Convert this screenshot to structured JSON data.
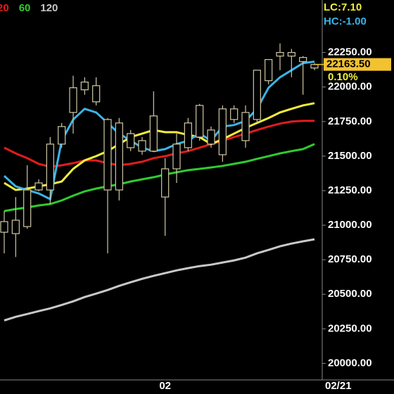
{
  "chart_data": {
    "type": "candlestick",
    "categories": [
      null,
      null,
      null,
      null,
      null,
      null,
      null,
      null,
      null,
      null,
      null,
      null,
      null,
      null,
      "02",
      null,
      null,
      null,
      null,
      null,
      null,
      null,
      null,
      null,
      null,
      null,
      null,
      null
    ],
    "last_date": "02/21",
    "open": [
      20949,
      20939,
      20990,
      21255,
      21255,
      21587,
      21816,
      21980,
      21893,
      21765,
      21255,
      21561,
      21536,
      21536,
      21408,
      21408,
      21561,
      21638,
      21587,
      21510,
      21765,
      21612,
      21765,
      22046,
      22224,
      22224,
      22184,
      22138
    ],
    "high": [
      21102,
      21204,
      21434,
      21332,
      21638,
      21740,
      22082,
      22071,
      22071,
      21776,
      21776,
      21689,
      21638,
      21969,
      21485,
      21663,
      21776,
      21878,
      21714,
      21867,
      21867,
      21867,
      22122,
      22199,
      22316,
      22276,
      22224,
      22173
    ],
    "low": [
      20796,
      20770,
      20974,
      21245,
      21153,
      21561,
      21663,
      21944,
      21867,
      20796,
      21179,
      21536,
      21510,
      21536,
      20923,
      21306,
      21536,
      21612,
      21561,
      21459,
      21740,
      21561,
      21740,
      22020,
      22122,
      22071,
      21944,
      22122
    ],
    "close": [
      21026,
      21036,
      21255,
      21306,
      21587,
      21714,
      21995,
      22036,
      22010,
      21255,
      21740,
      21663,
      21612,
      21791,
      21204,
      21587,
      21740,
      21867,
      21689,
      21842,
      21842,
      21816,
      22122,
      22199,
      22250,
      22250,
      22214,
      22163
    ],
    "candle_color": "#cfc7a3",
    "series": [
      {
        "color": "#3ab4e6",
        "values": [
          21357,
          21281,
          21255,
          21230,
          21189,
          21612,
          21765,
          21842,
          21816,
          21740,
          21663,
          21612,
          21561,
          21536,
          21551,
          21587,
          21612,
          21663,
          21612,
          21714,
          21725,
          21755,
          21842,
          21995,
          22071,
          22122,
          22173,
          22184
        ]
      },
      {
        "color": "#f2ee3a",
        "values": [
          21306,
          21255,
          21265,
          21281,
          21296,
          21316,
          21408,
          21469,
          21500,
          21536,
          21587,
          21638,
          21663,
          21689,
          21673,
          21673,
          21653,
          21638,
          21587,
          21622,
          21663,
          21704,
          21740,
          21776,
          21816,
          21842,
          21867,
          21883
        ]
      },
      {
        "name": "20",
        "color": "#e01c1c",
        "values": [
          21561,
          21520,
          21485,
          21444,
          21423,
          21434,
          21449,
          21469,
          21469,
          21449,
          21434,
          21444,
          21459,
          21485,
          21500,
          21520,
          21536,
          21561,
          21587,
          21612,
          21638,
          21663,
          21689,
          21714,
          21735,
          21750,
          21755,
          21755
        ]
      },
      {
        "name": "60",
        "color": "#2ecc2e",
        "values": [
          21102,
          21117,
          21128,
          21143,
          21153,
          21179,
          21214,
          21245,
          21265,
          21281,
          21296,
          21316,
          21332,
          21347,
          21367,
          21383,
          21398,
          21408,
          21418,
          21429,
          21444,
          21459,
          21480,
          21500,
          21520,
          21536,
          21551,
          21587
        ]
      },
      {
        "name": "120",
        "color": "#c8c8c8",
        "values": [
          20311,
          20337,
          20357,
          20378,
          20398,
          20423,
          20449,
          20480,
          20505,
          20531,
          20561,
          20587,
          20612,
          20633,
          20653,
          20673,
          20689,
          20704,
          20714,
          20730,
          20745,
          20765,
          20796,
          20821,
          20847,
          20867,
          20883,
          20898
        ]
      }
    ],
    "ylim": [
      19880,
      22630
    ],
    "yticks": [
      {
        "value": 20000,
        "label": "20000.00"
      },
      {
        "value": 20250,
        "label": "20250.00"
      },
      {
        "value": 20500,
        "label": "20500.00"
      },
      {
        "value": 20750,
        "label": "20750.00"
      },
      {
        "value": 21000,
        "label": "21000.00"
      },
      {
        "value": 21250,
        "label": "21250.00"
      },
      {
        "value": 21500,
        "label": "21500.00"
      },
      {
        "value": 21750,
        "label": "21750.00"
      },
      {
        "value": 22000,
        "label": "22000.00"
      },
      {
        "value": 22250,
        "label": "22250.00"
      }
    ],
    "last_price": {
      "value": 22163.5,
      "label": "22163.50"
    },
    "change": "0.10%",
    "lc": "LC:7.10",
    "hc": "HC:-1.00"
  }
}
